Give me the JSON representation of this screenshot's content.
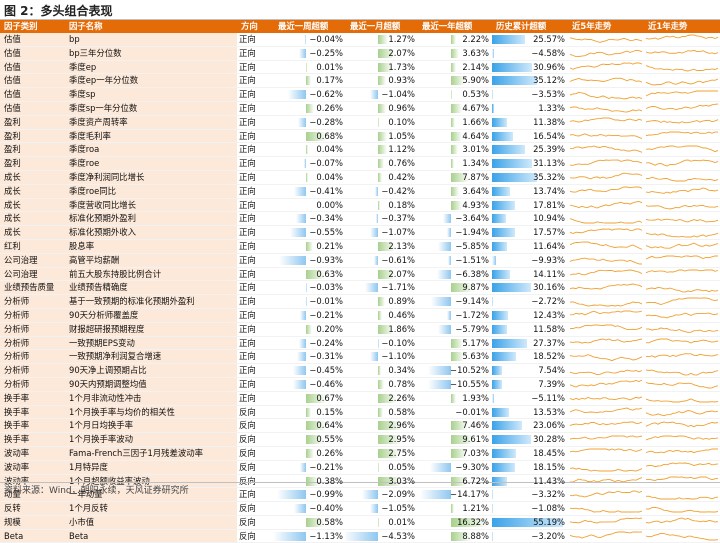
{
  "figure_title": "图 2：多头组合表现",
  "source": "资料来源：Wind，朝阳永续，天风证券研究所",
  "columns": [
    "因子类别",
    "因子名称",
    "方向",
    "最近一周超额",
    "最近一月超额",
    "最近一年超额",
    "历史累计超额",
    "近5年走势",
    "近1年走势"
  ],
  "colors": {
    "header_bg": "#e36c09",
    "label_bg": "#fde9d9",
    "neg_bar": "#8fc7f0",
    "pos_bar": "#a8d08d",
    "cum_bar": "#3aa2e8",
    "spark": "#f0a030"
  },
  "rows": [
    {
      "cat": "估值",
      "name": "bp",
      "dir": "正向",
      "week": "−0.04%",
      "month": "1.27%",
      "year": "2.22%",
      "cum": "25.57%",
      "wv": -0.04,
      "mv": 1.27,
      "yv": 2.22,
      "cv": 25.57
    },
    {
      "cat": "估值",
      "name": "bp三年分位数",
      "dir": "正向",
      "week": "−0.25%",
      "month": "2.07%",
      "year": "3.63%",
      "cum": "−4.58%",
      "wv": -0.25,
      "mv": 2.07,
      "yv": 3.63,
      "cv": -4.58
    },
    {
      "cat": "估值",
      "name": "季度ep",
      "dir": "正向",
      "week": "0.01%",
      "month": "1.73%",
      "year": "2.14%",
      "cum": "30.96%",
      "wv": 0.01,
      "mv": 1.73,
      "yv": 2.14,
      "cv": 30.96
    },
    {
      "cat": "估值",
      "name": "季度ep一年分位数",
      "dir": "正向",
      "week": "0.17%",
      "month": "0.93%",
      "year": "5.90%",
      "cum": "35.12%",
      "wv": 0.17,
      "mv": 0.93,
      "yv": 5.9,
      "cv": 35.12
    },
    {
      "cat": "估值",
      "name": "季度sp",
      "dir": "正向",
      "week": "−0.62%",
      "month": "−1.04%",
      "year": "0.53%",
      "cum": "−3.53%",
      "wv": -0.62,
      "mv": -1.04,
      "yv": 0.53,
      "cv": -3.53
    },
    {
      "cat": "估值",
      "name": "季度sp一年分位数",
      "dir": "正向",
      "week": "0.26%",
      "month": "0.96%",
      "year": "4.67%",
      "cum": "1.33%",
      "wv": 0.26,
      "mv": 0.96,
      "yv": 4.67,
      "cv": 1.33
    },
    {
      "cat": "盈利",
      "name": "季度资产周转率",
      "dir": "正向",
      "week": "−0.28%",
      "month": "0.10%",
      "year": "1.66%",
      "cum": "11.38%",
      "wv": -0.28,
      "mv": 0.1,
      "yv": 1.66,
      "cv": 11.38
    },
    {
      "cat": "盈利",
      "name": "季度毛利率",
      "dir": "正向",
      "week": "0.68%",
      "month": "1.05%",
      "year": "4.64%",
      "cum": "16.54%",
      "wv": 0.68,
      "mv": 1.05,
      "yv": 4.64,
      "cv": 16.54
    },
    {
      "cat": "盈利",
      "name": "季度roa",
      "dir": "正向",
      "week": "0.04%",
      "month": "1.12%",
      "year": "3.01%",
      "cum": "25.39%",
      "wv": 0.04,
      "mv": 1.12,
      "yv": 3.01,
      "cv": 25.39
    },
    {
      "cat": "盈利",
      "name": "季度roe",
      "dir": "正向",
      "week": "−0.07%",
      "month": "0.76%",
      "year": "1.34%",
      "cum": "31.13%",
      "wv": -0.07,
      "mv": 0.76,
      "yv": 1.34,
      "cv": 31.13
    },
    {
      "cat": "成长",
      "name": "季度净利润同比增长",
      "dir": "正向",
      "week": "0.04%",
      "month": "0.42%",
      "year": "7.87%",
      "cum": "35.32%",
      "wv": 0.04,
      "mv": 0.42,
      "yv": 7.87,
      "cv": 35.32
    },
    {
      "cat": "成长",
      "name": "季度roe同比",
      "dir": "正向",
      "week": "−0.41%",
      "month": "−0.42%",
      "year": "3.64%",
      "cum": "13.74%",
      "wv": -0.41,
      "mv": -0.42,
      "yv": 3.64,
      "cv": 13.74
    },
    {
      "cat": "成长",
      "name": "季度营收同比增长",
      "dir": "正向",
      "week": "0.00%",
      "month": "0.18%",
      "year": "4.93%",
      "cum": "17.81%",
      "wv": 0.0,
      "mv": 0.18,
      "yv": 4.93,
      "cv": 17.81
    },
    {
      "cat": "成长",
      "name": "标准化预期外盈利",
      "dir": "正向",
      "week": "−0.34%",
      "month": "−0.37%",
      "year": "−3.64%",
      "cum": "10.94%",
      "wv": -0.34,
      "mv": -0.37,
      "yv": -3.64,
      "cv": 10.94
    },
    {
      "cat": "成长",
      "name": "标准化预期外收入",
      "dir": "正向",
      "week": "−0.55%",
      "month": "−1.07%",
      "year": "−1.94%",
      "cum": "17.57%",
      "wv": -0.55,
      "mv": -1.07,
      "yv": -1.94,
      "cv": 17.57
    },
    {
      "cat": "红利",
      "name": "股息率",
      "dir": "正向",
      "week": "0.21%",
      "month": "2.13%",
      "year": "−5.85%",
      "cum": "11.64%",
      "wv": 0.21,
      "mv": 2.13,
      "yv": -5.85,
      "cv": 11.64
    },
    {
      "cat": "公司治理",
      "name": "高管平均薪酬",
      "dir": "正向",
      "week": "−0.93%",
      "month": "−0.61%",
      "year": "−1.51%",
      "cum": "−9.93%",
      "wv": -0.93,
      "mv": -0.61,
      "yv": -1.51,
      "cv": -9.93
    },
    {
      "cat": "公司治理",
      "name": "前五大股东持股比例合计",
      "dir": "正向",
      "week": "0.63%",
      "month": "2.07%",
      "year": "−6.38%",
      "cum": "14.11%",
      "wv": 0.63,
      "mv": 2.07,
      "yv": -6.38,
      "cv": 14.11
    },
    {
      "cat": "业绩预告质量",
      "name": "业绩预告精确度",
      "dir": "正向",
      "week": "−0.03%",
      "month": "−1.71%",
      "year": "9.87%",
      "cum": "30.16%",
      "wv": -0.03,
      "mv": -1.71,
      "yv": 9.87,
      "cv": 30.16
    },
    {
      "cat": "分析师",
      "name": "基于一致预期的标准化预期外盈利",
      "dir": "正向",
      "week": "−0.01%",
      "month": "0.89%",
      "year": "−9.14%",
      "cum": "−2.72%",
      "wv": -0.01,
      "mv": 0.89,
      "yv": -9.14,
      "cv": -2.72
    },
    {
      "cat": "分析师",
      "name": "90天分析师覆盖度",
      "dir": "正向",
      "week": "−0.21%",
      "month": "0.46%",
      "year": "−1.72%",
      "cum": "12.43%",
      "wv": -0.21,
      "mv": 0.46,
      "yv": -1.72,
      "cv": 12.43
    },
    {
      "cat": "分析师",
      "name": "财报超研报预期程度",
      "dir": "正向",
      "week": "0.20%",
      "month": "1.86%",
      "year": "−5.79%",
      "cum": "11.58%",
      "wv": 0.2,
      "mv": 1.86,
      "yv": -5.79,
      "cv": 11.58
    },
    {
      "cat": "分析师",
      "name": "一致预期EPS变动",
      "dir": "正向",
      "week": "−0.24%",
      "month": "−0.10%",
      "year": "5.17%",
      "cum": "27.37%",
      "wv": -0.24,
      "mv": -0.1,
      "yv": 5.17,
      "cv": 27.37
    },
    {
      "cat": "分析师",
      "name": "一致预期净利润复合增速",
      "dir": "正向",
      "week": "−0.31%",
      "month": "−1.10%",
      "year": "5.63%",
      "cum": "18.52%",
      "wv": -0.31,
      "mv": -1.1,
      "yv": 5.63,
      "cv": 18.52
    },
    {
      "cat": "分析师",
      "name": "90天净上调预期占比",
      "dir": "正向",
      "week": "−0.45%",
      "month": "0.34%",
      "year": "−10.52%",
      "cum": "7.54%",
      "wv": -0.45,
      "mv": 0.34,
      "yv": -10.52,
      "cv": 7.54
    },
    {
      "cat": "分析师",
      "name": "90天内预期调整均值",
      "dir": "正向",
      "week": "−0.46%",
      "month": "0.78%",
      "year": "−10.55%",
      "cum": "7.39%",
      "wv": -0.46,
      "mv": 0.78,
      "yv": -10.55,
      "cv": 7.39
    },
    {
      "cat": "换手率",
      "name": "1个月非流动性冲击",
      "dir": "正向",
      "week": "0.67%",
      "month": "2.26%",
      "year": "1.93%",
      "cum": "−5.11%",
      "wv": 0.67,
      "mv": 2.26,
      "yv": 1.93,
      "cv": -5.11
    },
    {
      "cat": "换手率",
      "name": "1个月换手率与均价的相关性",
      "dir": "反向",
      "week": "0.15%",
      "month": "0.58%",
      "year": "−0.01%",
      "cum": "13.53%",
      "wv": 0.15,
      "mv": 0.58,
      "yv": -0.01,
      "cv": 13.53
    },
    {
      "cat": "换手率",
      "name": "1个月日均换手率",
      "dir": "反向",
      "week": "0.64%",
      "month": "2.96%",
      "year": "7.46%",
      "cum": "23.06%",
      "wv": 0.64,
      "mv": 2.96,
      "yv": 7.46,
      "cv": 23.06
    },
    {
      "cat": "换手率",
      "name": "1个月换手率波动",
      "dir": "反向",
      "week": "0.55%",
      "month": "2.95%",
      "year": "9.61%",
      "cum": "30.28%",
      "wv": 0.55,
      "mv": 2.95,
      "yv": 9.61,
      "cv": 30.28
    },
    {
      "cat": "波动率",
      "name": "Fama-French三因子1月残差波动率",
      "dir": "反向",
      "week": "0.26%",
      "month": "2.75%",
      "year": "7.03%",
      "cum": "18.45%",
      "wv": 0.26,
      "mv": 2.75,
      "yv": 7.03,
      "cv": 18.45
    },
    {
      "cat": "波动率",
      "name": "1月特异度",
      "dir": "反向",
      "week": "−0.21%",
      "month": "0.05%",
      "year": "−9.30%",
      "cum": "18.15%",
      "wv": -0.21,
      "mv": 0.05,
      "yv": -9.3,
      "cv": 18.15
    },
    {
      "cat": "波动率",
      "name": "1个月超额收益率波动",
      "dir": "反向",
      "week": "0.38%",
      "month": "3.03%",
      "year": "6.72%",
      "cum": "11.43%",
      "wv": 0.38,
      "mv": 3.03,
      "yv": 6.72,
      "cv": 11.43
    },
    {
      "cat": "动量",
      "name": "一年动量",
      "dir": "正向",
      "week": "−0.99%",
      "month": "−2.09%",
      "year": "−14.17%",
      "cum": "−3.32%",
      "wv": -0.99,
      "mv": -2.09,
      "yv": -14.17,
      "cv": -3.32
    },
    {
      "cat": "反转",
      "name": "1个月反转",
      "dir": "反向",
      "week": "−0.40%",
      "month": "−1.05%",
      "year": "1.21%",
      "cum": "−1.08%",
      "wv": -0.4,
      "mv": -1.05,
      "yv": 1.21,
      "cv": -1.08
    },
    {
      "cat": "规模",
      "name": "小市值",
      "dir": "反向",
      "week": "0.58%",
      "month": "0.01%",
      "year": "16.32%",
      "cum": "55.19%",
      "wv": 0.58,
      "mv": 0.01,
      "yv": 16.32,
      "cv": 55.19
    },
    {
      "cat": "Beta",
      "name": "Beta",
      "dir": "反向",
      "week": "−1.13%",
      "month": "−4.53%",
      "year": "8.88%",
      "cum": "−3.20%",
      "wv": -1.13,
      "mv": -4.53,
      "yv": 8.88,
      "cv": -3.2
    }
  ]
}
